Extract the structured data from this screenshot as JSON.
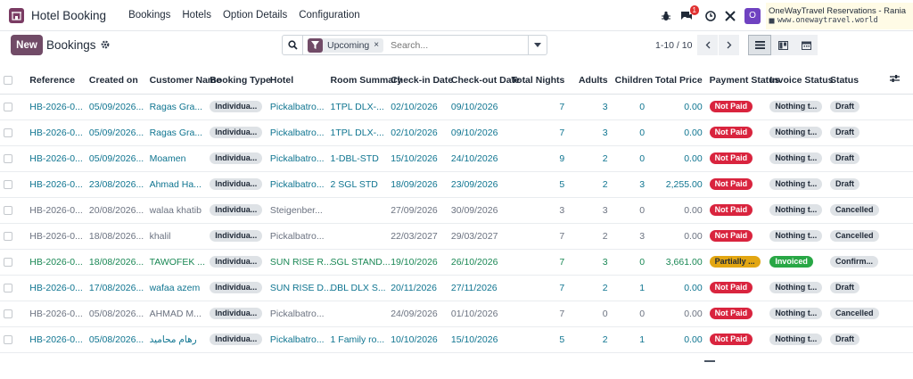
{
  "app": {
    "name": "Hotel Booking"
  },
  "menu": [
    "Bookings",
    "Hotels",
    "Option Details",
    "Configuration"
  ],
  "systray": {
    "chat_badge": "1",
    "avatar_initial": "O",
    "company_name": "OneWayTravel Reservations - Rania",
    "company_site": "www.onewaytravel.world"
  },
  "control": {
    "new_label": "New",
    "title": "Bookings",
    "facet_label": "Upcoming",
    "facet_remove": "×",
    "search_placeholder": "Search...",
    "pager": "1-10 / 10"
  },
  "columns": [
    "Reference",
    "Created on",
    "Customer Name",
    "Booking Type",
    "Hotel",
    "Room Summary",
    "Check-in Date",
    "Check-out Date",
    "Total Nights",
    "Adults",
    "Children",
    "Total Price",
    "Payment Status",
    "Invoice Status",
    "Status"
  ],
  "rows": [
    {
      "color": "blue",
      "ref": "HB-2026-0...",
      "created": "05/09/2026...",
      "customer": "Ragas Gra...",
      "type": "Individua...",
      "hotel": "Pickalbatro...",
      "room": "1TPL DLX-...",
      "checkin": "02/10/2026",
      "checkout": "09/10/2026",
      "nights": "7",
      "adults": "3",
      "children": "0",
      "price": "0.00",
      "payment": "Not Paid",
      "payment_style": "red",
      "invoice": "Nothing t...",
      "invoice_style": "gray",
      "status": "Draft"
    },
    {
      "color": "blue",
      "ref": "HB-2026-0...",
      "created": "05/09/2026...",
      "customer": "Ragas Gra...",
      "type": "Individua...",
      "hotel": "Pickalbatro...",
      "room": "1TPL DLX-...",
      "checkin": "02/10/2026",
      "checkout": "09/10/2026",
      "nights": "7",
      "adults": "3",
      "children": "0",
      "price": "0.00",
      "payment": "Not Paid",
      "payment_style": "red",
      "invoice": "Nothing t...",
      "invoice_style": "gray",
      "status": "Draft"
    },
    {
      "color": "blue",
      "ref": "HB-2026-0...",
      "created": "05/09/2026...",
      "customer": "Moamen",
      "type": "Individua...",
      "hotel": "Pickalbatro...",
      "room": "1-DBL-STD",
      "checkin": "15/10/2026",
      "checkout": "24/10/2026",
      "nights": "9",
      "adults": "2",
      "children": "0",
      "price": "0.00",
      "payment": "Not Paid",
      "payment_style": "red",
      "invoice": "Nothing t...",
      "invoice_style": "gray",
      "status": "Draft"
    },
    {
      "color": "blue",
      "ref": "HB-2026-0...",
      "created": "23/08/2026...",
      "customer": "Ahmad Ha...",
      "type": "Individua...",
      "hotel": "Pickalbatro...",
      "room": "2 SGL STD",
      "checkin": "18/09/2026",
      "checkout": "23/09/2026",
      "nights": "5",
      "adults": "2",
      "children": "3",
      "price": "2,255.00",
      "payment": "Not Paid",
      "payment_style": "red",
      "invoice": "Nothing t...",
      "invoice_style": "gray",
      "status": "Draft"
    },
    {
      "color": "gray",
      "ref": "HB-2026-0...",
      "created": "20/08/2026...",
      "customer": "walaa khatib",
      "type": "Individua...",
      "hotel": "Steigenber...",
      "room": "",
      "checkin": "27/09/2026",
      "checkout": "30/09/2026",
      "nights": "3",
      "adults": "3",
      "children": "0",
      "price": "0.00",
      "payment": "Not Paid",
      "payment_style": "red",
      "invoice": "Nothing t...",
      "invoice_style": "gray",
      "status": "Cancelled"
    },
    {
      "color": "gray",
      "ref": "HB-2026-0...",
      "created": "18/08/2026...",
      "customer": "khalil",
      "type": "Individua...",
      "hotel": "Pickalbatro...",
      "room": "",
      "checkin": "22/03/2027",
      "checkout": "29/03/2027",
      "nights": "7",
      "adults": "2",
      "children": "3",
      "price": "0.00",
      "payment": "Not Paid",
      "payment_style": "red",
      "invoice": "Nothing t...",
      "invoice_style": "gray",
      "status": "Cancelled"
    },
    {
      "color": "green",
      "ref": "HB-2026-0...",
      "created": "18/08/2026...",
      "customer": "TAWOFEK ...",
      "type": "Individua...",
      "hotel": "SUN RISE R...",
      "room": "SGL STAND...",
      "checkin": "19/10/2026",
      "checkout": "26/10/2026",
      "nights": "7",
      "adults": "3",
      "children": "0",
      "price": "3,661.00",
      "payment": "Partially ...",
      "payment_style": "orange",
      "invoice": "Invoiced",
      "invoice_style": "green",
      "status": "Confirm..."
    },
    {
      "color": "blue",
      "ref": "HB-2026-0...",
      "created": "17/08/2026...",
      "customer": "wafaa azem",
      "type": "Individua...",
      "hotel": "SUN RISE D...",
      "room": "DBL DLX S...",
      "checkin": "20/11/2026",
      "checkout": "27/11/2026",
      "nights": "7",
      "adults": "2",
      "children": "1",
      "price": "0.00",
      "payment": "Not Paid",
      "payment_style": "red",
      "invoice": "Nothing t...",
      "invoice_style": "gray",
      "status": "Draft"
    },
    {
      "color": "gray",
      "ref": "HB-2026-0...",
      "created": "05/08/2026...",
      "customer": "AHMAD M...",
      "type": "Individua...",
      "hotel": "Pickalbatro...",
      "room": "",
      "checkin": "24/09/2026",
      "checkout": "01/10/2026",
      "nights": "7",
      "adults": "0",
      "children": "0",
      "price": "0.00",
      "payment": "Not Paid",
      "payment_style": "red",
      "invoice": "Nothing t...",
      "invoice_style": "gray",
      "status": "Cancelled"
    },
    {
      "color": "blue",
      "ref": "HB-2026-0...",
      "created": "05/08/2026...",
      "customer": "رهام محاميد",
      "type": "Individua...",
      "hotel": "Pickalbatro...",
      "room": "1 Family ro...",
      "checkin": "10/10/2026",
      "checkout": "15/10/2026",
      "nights": "5",
      "adults": "2",
      "children": "1",
      "price": "0.00",
      "payment": "Not Paid",
      "payment_style": "red",
      "invoice": "Nothing t...",
      "invoice_style": "gray",
      "status": "Draft"
    }
  ]
}
